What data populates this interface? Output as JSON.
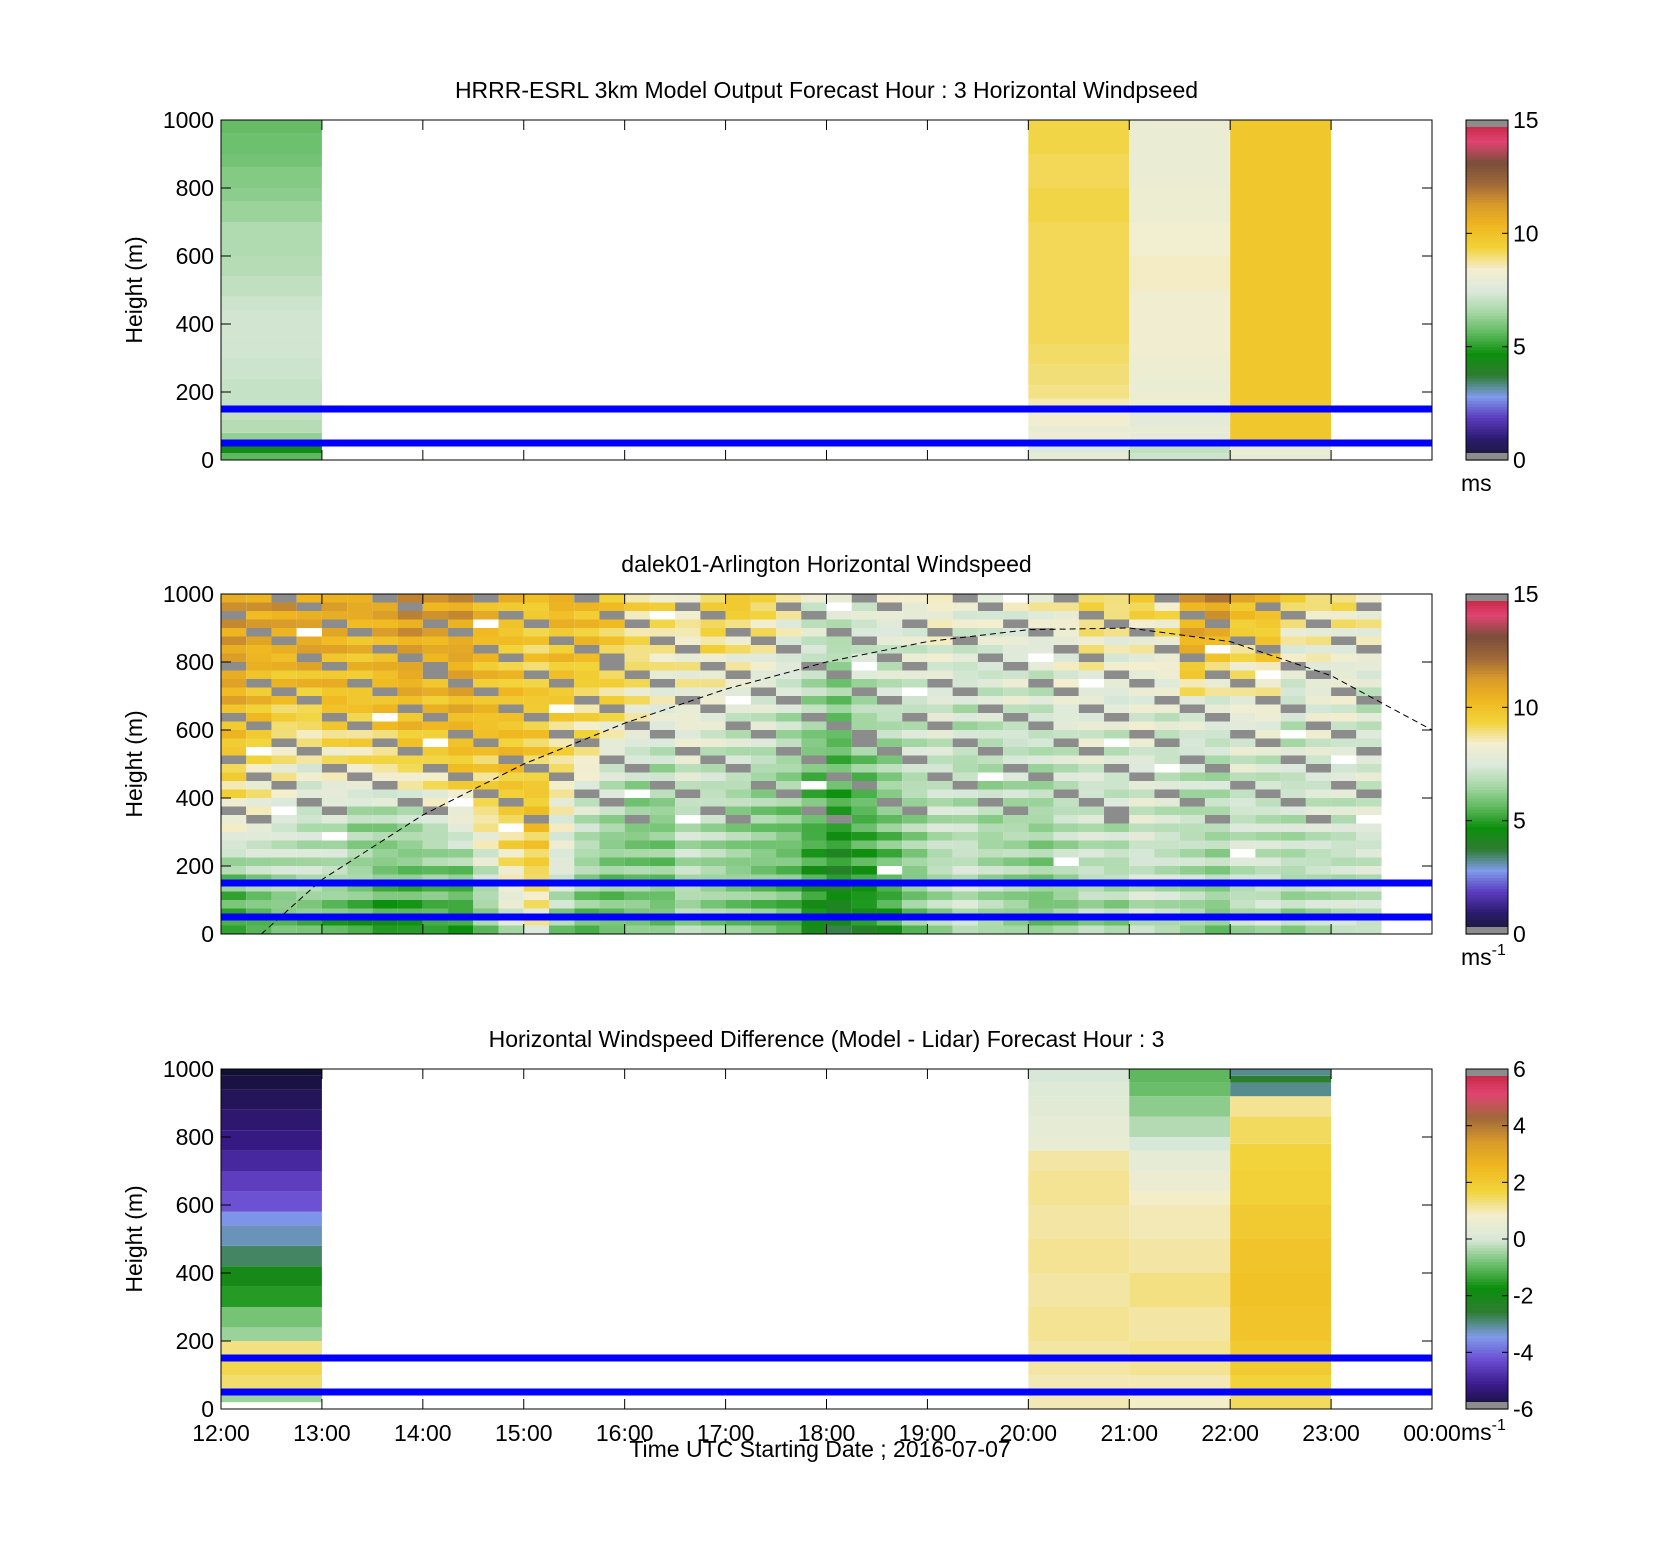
{
  "figure": {
    "xlabel": "Time UTC  Starting Date ; 2016-07-07",
    "x_ticks": [
      "12:00",
      "13:00",
      "14:00",
      "15:00",
      "16:00",
      "17:00",
      "18:00",
      "19:00",
      "20:00",
      "21:00",
      "22:00",
      "23:00",
      "00:00"
    ]
  },
  "colors": {
    "speed_colormap": [
      "#1a1a2e",
      "#2b1b6e",
      "#5a3cbf",
      "#7f9bea",
      "#2e7d32",
      "#0c8f0c",
      "#5fba5f",
      "#a8d8a8",
      "#dce9dc",
      "#f3eecf",
      "#f2d33a",
      "#f0b820",
      "#d99b2a",
      "#a0693a",
      "#7a4e3a",
      "#e04470",
      "#c0203a"
    ],
    "diff_colormap": [
      "#101030",
      "#3a1a8a",
      "#6a4ad0",
      "#7f9bea",
      "#2e7d32",
      "#0c8f0c",
      "#6fc06f",
      "#d8e8d8",
      "#f3eecf",
      "#f2d33a",
      "#f0b820",
      "#d99b2a",
      "#a0693a",
      "#e04470",
      "#c0203a"
    ],
    "missing_gray": "#8c8c8c",
    "reference_line": "#0000ff"
  },
  "chart_data": [
    {
      "type": "heatmap",
      "title": "HRRR-ESRL 3km Model Output   Forecast Hour : 3 Horizontal Windpseed",
      "ylabel": "Height (m)",
      "y_ticks": [
        "0",
        "200",
        "400",
        "600",
        "800",
        "1000"
      ],
      "ylim": [
        0,
        1000
      ],
      "xlim": [
        0,
        12
      ],
      "colorbar": {
        "ticks": [
          "0",
          "5",
          "10",
          "15"
        ],
        "range": [
          0,
          15
        ],
        "unit": "ms",
        "unit_superscript": ""
      },
      "reference_lines_m": [
        50,
        150
      ],
      "columns": [
        {
          "hour": "12:00",
          "values": [
            [
              0,
              5.6
            ],
            [
              20,
              4.4
            ],
            [
              40,
              6.0
            ],
            [
              60,
              6.3
            ],
            [
              80,
              6.8
            ],
            [
              120,
              7.0
            ],
            [
              160,
              7.1
            ],
            [
              200,
              7.1
            ],
            [
              240,
              7.2
            ],
            [
              300,
              7.3
            ],
            [
              360,
              7.3
            ],
            [
              440,
              7.2
            ],
            [
              480,
              7.0
            ],
            [
              540,
              6.8
            ],
            [
              600,
              6.7
            ],
            [
              700,
              6.4
            ],
            [
              760,
              6.2
            ],
            [
              800,
              6.1
            ],
            [
              860,
              5.9
            ],
            [
              900,
              5.8
            ],
            [
              960,
              5.7
            ]
          ]
        },
        {
          "hour": "20:00",
          "values": [
            [
              0,
              7.9
            ],
            [
              20,
              7.5
            ],
            [
              40,
              8.0
            ],
            [
              60,
              8.2
            ],
            [
              80,
              8.0
            ],
            [
              100,
              8.3
            ],
            [
              140,
              8.6
            ],
            [
              180,
              8.9
            ],
            [
              220,
              9.0
            ],
            [
              280,
              9.1
            ],
            [
              340,
              9.2
            ],
            [
              400,
              9.2
            ],
            [
              500,
              9.2
            ],
            [
              600,
              9.2
            ],
            [
              700,
              9.3
            ],
            [
              800,
              9.2
            ],
            [
              900,
              9.3
            ]
          ]
        },
        {
          "hour": "21:00",
          "values": [
            [
              0,
              7.2
            ],
            [
              20,
              7.0
            ],
            [
              40,
              7.4
            ],
            [
              60,
              7.9
            ],
            [
              80,
              8.0
            ],
            [
              100,
              7.8
            ],
            [
              140,
              8.2
            ],
            [
              200,
              8.1
            ],
            [
              240,
              8.2
            ],
            [
              300,
              8.3
            ],
            [
              400,
              8.3
            ],
            [
              500,
              8.5
            ],
            [
              600,
              8.4
            ],
            [
              700,
              8.2
            ],
            [
              800,
              8.1
            ],
            [
              900,
              8.1
            ]
          ]
        },
        {
          "hour": "22:00",
          "values": [
            [
              0,
              7.9
            ],
            [
              20,
              8.0
            ],
            [
              40,
              8.1
            ],
            [
              60,
              9.8
            ],
            [
              100,
              9.8
            ],
            [
              200,
              9.8
            ],
            [
              400,
              9.8
            ],
            [
              600,
              9.8
            ],
            [
              800,
              9.8
            ],
            [
              900,
              9.8
            ]
          ]
        }
      ]
    },
    {
      "type": "heatmap",
      "title": "dalek01-Arlington  Horizontal Windspeed",
      "ylabel": "Height (m)",
      "y_ticks": [
        "0",
        "200",
        "400",
        "600",
        "800",
        "1000"
      ],
      "ylim": [
        0,
        1000
      ],
      "xlim": [
        0,
        12
      ],
      "colorbar": {
        "ticks": [
          "0",
          "5",
          "10",
          "15"
        ],
        "range": [
          0,
          15
        ],
        "unit": "ms",
        "unit_superscript": "-1"
      },
      "reference_lines_m": [
        50,
        150
      ],
      "dashed_curve": {
        "x_hours": [
          0.4,
          1,
          2,
          3,
          4,
          5,
          6,
          7,
          8,
          9,
          10,
          11,
          12
        ],
        "y_m": [
          0,
          160,
          350,
          500,
          620,
          720,
          800,
          860,
          895,
          900,
          860,
          760,
          600
        ]
      },
      "time_step_hours": 0.25,
      "profiles": [
        [
          5.0,
          6.0,
          8.5,
          9.5,
          10.5,
          11.0,
          11.0
        ],
        [
          5.2,
          6.5,
          8.0,
          9.0,
          10.0,
          10.5,
          11.0
        ],
        [
          5.5,
          6.8,
          7.5,
          8.5,
          9.5,
          10.5,
          11.2
        ],
        [
          5.3,
          7.0,
          7.0,
          8.0,
          9.5,
          10.8,
          11.0
        ],
        [
          5.0,
          6.8,
          7.2,
          8.5,
          10.0,
          10.5,
          11.0
        ],
        [
          4.8,
          6.5,
          6.5,
          8.8,
          9.8,
          10.2,
          10.8
        ],
        [
          4.5,
          6.0,
          6.5,
          9.0,
          10.0,
          10.5,
          11.0
        ],
        [
          4.8,
          5.8,
          6.8,
          9.2,
          10.5,
          10.8,
          11.5
        ],
        [
          5.2,
          6.0,
          7.2,
          9.5,
          10.0,
          10.5,
          11.0
        ],
        [
          5.0,
          5.8,
          8.0,
          9.8,
          10.5,
          10.8,
          11.2
        ],
        [
          6.0,
          7.0,
          8.8,
          9.5,
          10.2,
          10.0,
          10.5
        ],
        [
          7.0,
          8.5,
          9.5,
          9.8,
          10.0,
          9.8,
          10.2
        ],
        [
          8.0,
          9.2,
          9.8,
          9.5,
          9.8,
          9.5,
          9.8
        ],
        [
          6.0,
          7.5,
          8.0,
          9.0,
          9.5,
          10.0,
          10.5
        ],
        [
          5.5,
          6.5,
          7.0,
          8.5,
          9.2,
          9.8,
          10.2
        ],
        [
          5.8,
          6.0,
          6.5,
          7.5,
          9.0,
          9.5,
          9.8
        ],
        [
          6.0,
          6.2,
          6.0,
          7.0,
          8.5,
          9.0,
          9.2
        ],
        [
          5.8,
          6.0,
          6.2,
          6.8,
          8.0,
          8.8,
          9.0
        ],
        [
          6.5,
          6.8,
          7.0,
          7.5,
          8.2,
          8.5,
          8.8
        ],
        [
          6.2,
          6.5,
          6.8,
          7.2,
          8.0,
          9.0,
          9.5
        ],
        [
          6.0,
          6.2,
          6.5,
          7.0,
          7.5,
          8.5,
          10.0
        ],
        [
          5.8,
          6.0,
          6.2,
          6.8,
          7.5,
          8.2,
          9.5
        ],
        [
          5.5,
          5.8,
          6.0,
          6.5,
          7.0,
          7.8,
          8.5
        ],
        [
          4.5,
          5.0,
          5.5,
          5.8,
          6.5,
          7.2,
          7.8
        ],
        [
          4.0,
          4.5,
          5.0,
          5.5,
          6.0,
          6.8,
          7.5
        ],
        [
          4.5,
          5.0,
          5.5,
          6.0,
          6.8,
          7.2,
          7.8
        ],
        [
          5.0,
          5.5,
          6.0,
          6.5,
          7.0,
          7.5,
          8.0
        ],
        [
          6.0,
          6.2,
          6.5,
          7.0,
          7.2,
          7.5,
          8.2
        ],
        [
          6.5,
          6.8,
          7.0,
          7.2,
          7.5,
          7.8,
          8.5
        ],
        [
          7.0,
          7.2,
          7.0,
          6.8,
          7.0,
          7.5,
          8.0
        ],
        [
          6.5,
          6.8,
          6.5,
          6.8,
          7.2,
          7.5,
          8.2
        ],
        [
          6.2,
          6.5,
          6.8,
          7.0,
          7.5,
          7.8,
          8.0
        ],
        [
          5.8,
          6.2,
          6.5,
          7.0,
          7.2,
          7.5,
          8.5
        ],
        [
          6.0,
          6.5,
          7.0,
          7.2,
          7.8,
          8.0,
          8.5
        ],
        [
          6.5,
          7.0,
          7.2,
          7.5,
          7.8,
          8.5,
          9.5
        ],
        [
          6.2,
          6.8,
          7.0,
          7.2,
          7.5,
          8.0,
          9.2
        ],
        [
          7.0,
          7.2,
          7.5,
          7.5,
          7.8,
          8.2,
          9.8
        ],
        [
          6.8,
          7.0,
          7.2,
          7.2,
          7.5,
          8.5,
          9.0
        ],
        [
          6.5,
          6.8,
          7.0,
          7.0,
          8.0,
          10.5,
          11.0
        ],
        [
          6.0,
          6.5,
          6.8,
          7.0,
          7.5,
          10.0,
          11.5
        ],
        [
          6.8,
          7.0,
          7.2,
          7.5,
          8.0,
          9.0,
          10.5
        ],
        [
          7.0,
          7.2,
          7.0,
          7.2,
          8.2,
          9.5,
          10.0
        ],
        [
          6.5,
          6.8,
          7.0,
          7.2,
          7.0,
          8.0,
          9.5
        ],
        [
          6.8,
          7.0,
          7.2,
          7.5,
          7.8,
          8.2,
          9.0
        ],
        [
          7.2,
          7.0,
          7.2,
          7.5,
          7.8,
          8.0,
          9.2
        ],
        [
          7.0,
          7.2,
          7.5,
          7.5,
          7.2,
          8.0,
          8.8
        ]
      ]
    },
    {
      "type": "heatmap",
      "title": "Horizontal Windspeed Difference (Model - Lidar) Forecast Hour : 3",
      "ylabel": "Height (m)",
      "y_ticks": [
        "0",
        "200",
        "400",
        "600",
        "800",
        "1000"
      ],
      "ylim": [
        0,
        1000
      ],
      "xlim": [
        0,
        12
      ],
      "colorbar": {
        "ticks": [
          "-6",
          "-4",
          "-2",
          "0",
          "2",
          "4",
          "6"
        ],
        "range": [
          -6,
          6
        ],
        "unit": "ms",
        "unit_superscript": "-1"
      },
      "reference_lines_m": [
        50,
        150
      ],
      "columns": [
        {
          "hour": "12:00",
          "values": [
            [
              20,
              -0.5
            ],
            [
              40,
              1.0
            ],
            [
              60,
              1.4
            ],
            [
              100,
              1.6
            ],
            [
              160,
              1.3
            ],
            [
              200,
              -0.5
            ],
            [
              240,
              -0.8
            ],
            [
              300,
              -1.5
            ],
            [
              360,
              -2.0
            ],
            [
              420,
              -2.8
            ],
            [
              480,
              -3.2
            ],
            [
              540,
              -3.5
            ],
            [
              580,
              -4.2
            ],
            [
              640,
              -4.5
            ],
            [
              700,
              -4.9
            ],
            [
              760,
              -5.2
            ],
            [
              820,
              -5.4
            ],
            [
              880,
              -5.6
            ],
            [
              940,
              -5.8
            ],
            [
              980,
              -6.5
            ]
          ]
        },
        {
          "hour": "20:00",
          "values": [
            [
              0,
              1.0
            ],
            [
              40,
              1.0
            ],
            [
              100,
              1.1
            ],
            [
              200,
              1.2
            ],
            [
              300,
              1.1
            ],
            [
              400,
              1.2
            ],
            [
              500,
              1.1
            ],
            [
              600,
              1.2
            ],
            [
              700,
              1.1
            ],
            [
              760,
              0.5
            ],
            [
              800,
              0.4
            ],
            [
              860,
              0.3
            ],
            [
              920,
              0.2
            ],
            [
              960,
              0.0
            ]
          ]
        },
        {
          "hour": "21:00",
          "values": [
            [
              0,
              0.9
            ],
            [
              40,
              1.0
            ],
            [
              100,
              1.2
            ],
            [
              200,
              1.1
            ],
            [
              300,
              1.3
            ],
            [
              400,
              1.1
            ],
            [
              500,
              1.0
            ],
            [
              600,
              0.9
            ],
            [
              640,
              0.6
            ],
            [
              700,
              0.4
            ],
            [
              760,
              0.0
            ],
            [
              800,
              -0.3
            ],
            [
              860,
              -0.6
            ],
            [
              920,
              -0.9
            ],
            [
              960,
              -1.0
            ]
          ]
        },
        {
          "hour": "22:00",
          "values": [
            [
              0,
              1.5
            ],
            [
              40,
              1.7
            ],
            [
              100,
              2.0
            ],
            [
              200,
              2.2
            ],
            [
              300,
              2.3
            ],
            [
              400,
              2.2
            ],
            [
              500,
              2.0
            ],
            [
              600,
              1.8
            ],
            [
              700,
              1.7
            ],
            [
              780,
              1.5
            ],
            [
              860,
              1.2
            ],
            [
              920,
              -3.0
            ],
            [
              960,
              -2.5
            ],
            [
              980,
              -3.0
            ]
          ]
        }
      ]
    }
  ]
}
